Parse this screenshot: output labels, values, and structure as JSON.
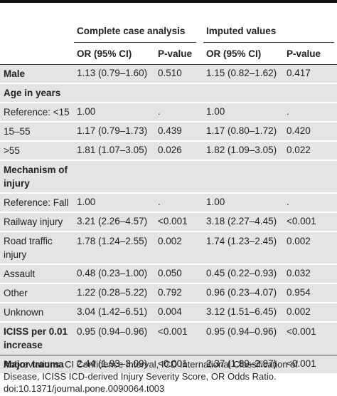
{
  "table": {
    "groups": [
      "Complete case analysis",
      "Imputed values"
    ],
    "columns": [
      "OR (95% CI)",
      "P-value",
      "OR (95% CI)",
      "P-value"
    ],
    "rows": [
      {
        "label": "Male",
        "bold": true,
        "cells": [
          "1.13 (0.79–1.60)",
          "0.510",
          "1.15 (0.82–1.62)",
          "0.417"
        ]
      },
      {
        "label": "Age in years",
        "bold": true
      },
      {
        "label": "Reference: <15",
        "cells": [
          "1.00",
          ".",
          "1.00",
          "."
        ]
      },
      {
        "label": "15–55",
        "cells": [
          "1.17 (0.79–1.73)",
          "0.439",
          "1.17 (0.80–1.72)",
          "0.420"
        ]
      },
      {
        "label": ">55",
        "cells": [
          "1.81 (1.07–3.05)",
          "0.026",
          "1.82 (1.09–3.05)",
          "0.022"
        ]
      },
      {
        "label": "Mechanism of injury",
        "bold": true
      },
      {
        "label": "Reference: Fall",
        "cells": [
          "1.00",
          ".",
          "1.00",
          "."
        ]
      },
      {
        "label": "Railway injury",
        "cells": [
          "3.21 (2.26–4.57)",
          "<0.001",
          "3.18 (2.27–4.45)",
          "<0.001"
        ]
      },
      {
        "label": "Road traffic injury",
        "cells": [
          "1.78 (1.24–2.55)",
          "0.002",
          "1.74 (1.23–2.45)",
          "0.002"
        ]
      },
      {
        "label": "Assault",
        "cells": [
          "0.48 (0.23–1.00)",
          "0.050",
          "0.45 (0.22–0.93)",
          "0.032"
        ]
      },
      {
        "label": "Other",
        "cells": [
          "1.22 (0.28–5.22)",
          "0.792",
          "0.96 (0.23–4.07)",
          "0.954"
        ]
      },
      {
        "label": "Unknown",
        "cells": [
          "3.04 (1.42–6.51)",
          "0.004",
          "3.12 (1.51–6.45)",
          "0.002"
        ]
      },
      {
        "label": "ICISS per 0.01 increase",
        "bold": true,
        "cells": [
          "0.95 (0.94–0.96)",
          "<0.001",
          "0.95 (0.94–0.96)",
          "<0.001"
        ]
      },
      {
        "label": "Major trauma",
        "bold": true,
        "cells": [
          "2.44 (1.93–3.09)",
          "<0.001",
          "2.37 (1.89–2.97)",
          "<0.001"
        ]
      }
    ]
  },
  "footnote": {
    "abbreviations": "Abbreviations: CI Confidence Interval, ICD International Classification of Disease, ICISS ICD-derived Injury Severity Score, OR Odds Ratio.",
    "doi": "doi:10.1371/journal.pone.0090064.t003"
  }
}
